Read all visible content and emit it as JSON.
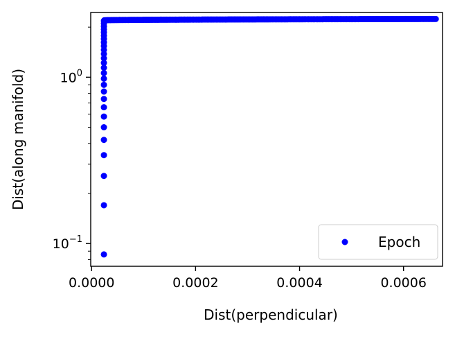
{
  "chart_data": {
    "type": "scatter",
    "xlabel": "Dist(perpendicular)",
    "ylabel": "Dist(along manifold)",
    "xscale": "linear",
    "yscale": "log",
    "xlim": [
      -1.67e-06,
      0.000675
    ],
    "ylim": [
      0.073,
      2.45
    ],
    "x_ticks": [
      0.0,
      0.0002,
      0.0004,
      0.0006
    ],
    "x_tick_labels": [
      "0.0000",
      "0.0002",
      "0.0004",
      "0.0006"
    ],
    "y_ticks": [
      0.1,
      1
    ],
    "y_tick_labels": [
      {
        "base": "10",
        "exp": "−1"
      },
      {
        "base": "10",
        "exp": "0"
      }
    ],
    "grid": false,
    "legend": {
      "position": "lower-right",
      "entries": [
        "Epoch"
      ]
    },
    "series": [
      {
        "name": "Epoch",
        "color": "#0000ff",
        "marker": "circle",
        "rising_x": 2.37e-05,
        "rising_y": [
          0.086,
          0.17,
          0.255,
          0.34,
          0.42,
          0.5,
          0.58,
          0.66,
          0.74,
          0.82,
          0.9,
          0.98,
          1.06,
          1.14,
          1.22,
          1.3,
          1.38,
          1.46,
          1.54,
          1.62,
          1.7,
          1.78,
          1.86,
          1.94,
          2.02,
          2.1,
          2.18
        ],
        "plateau_x_start": 2.45e-05,
        "plateau_x_end": 0.000662,
        "plateau_y_start": 2.2,
        "plateau_y_end": 2.24,
        "plateau_count": 220
      }
    ]
  }
}
